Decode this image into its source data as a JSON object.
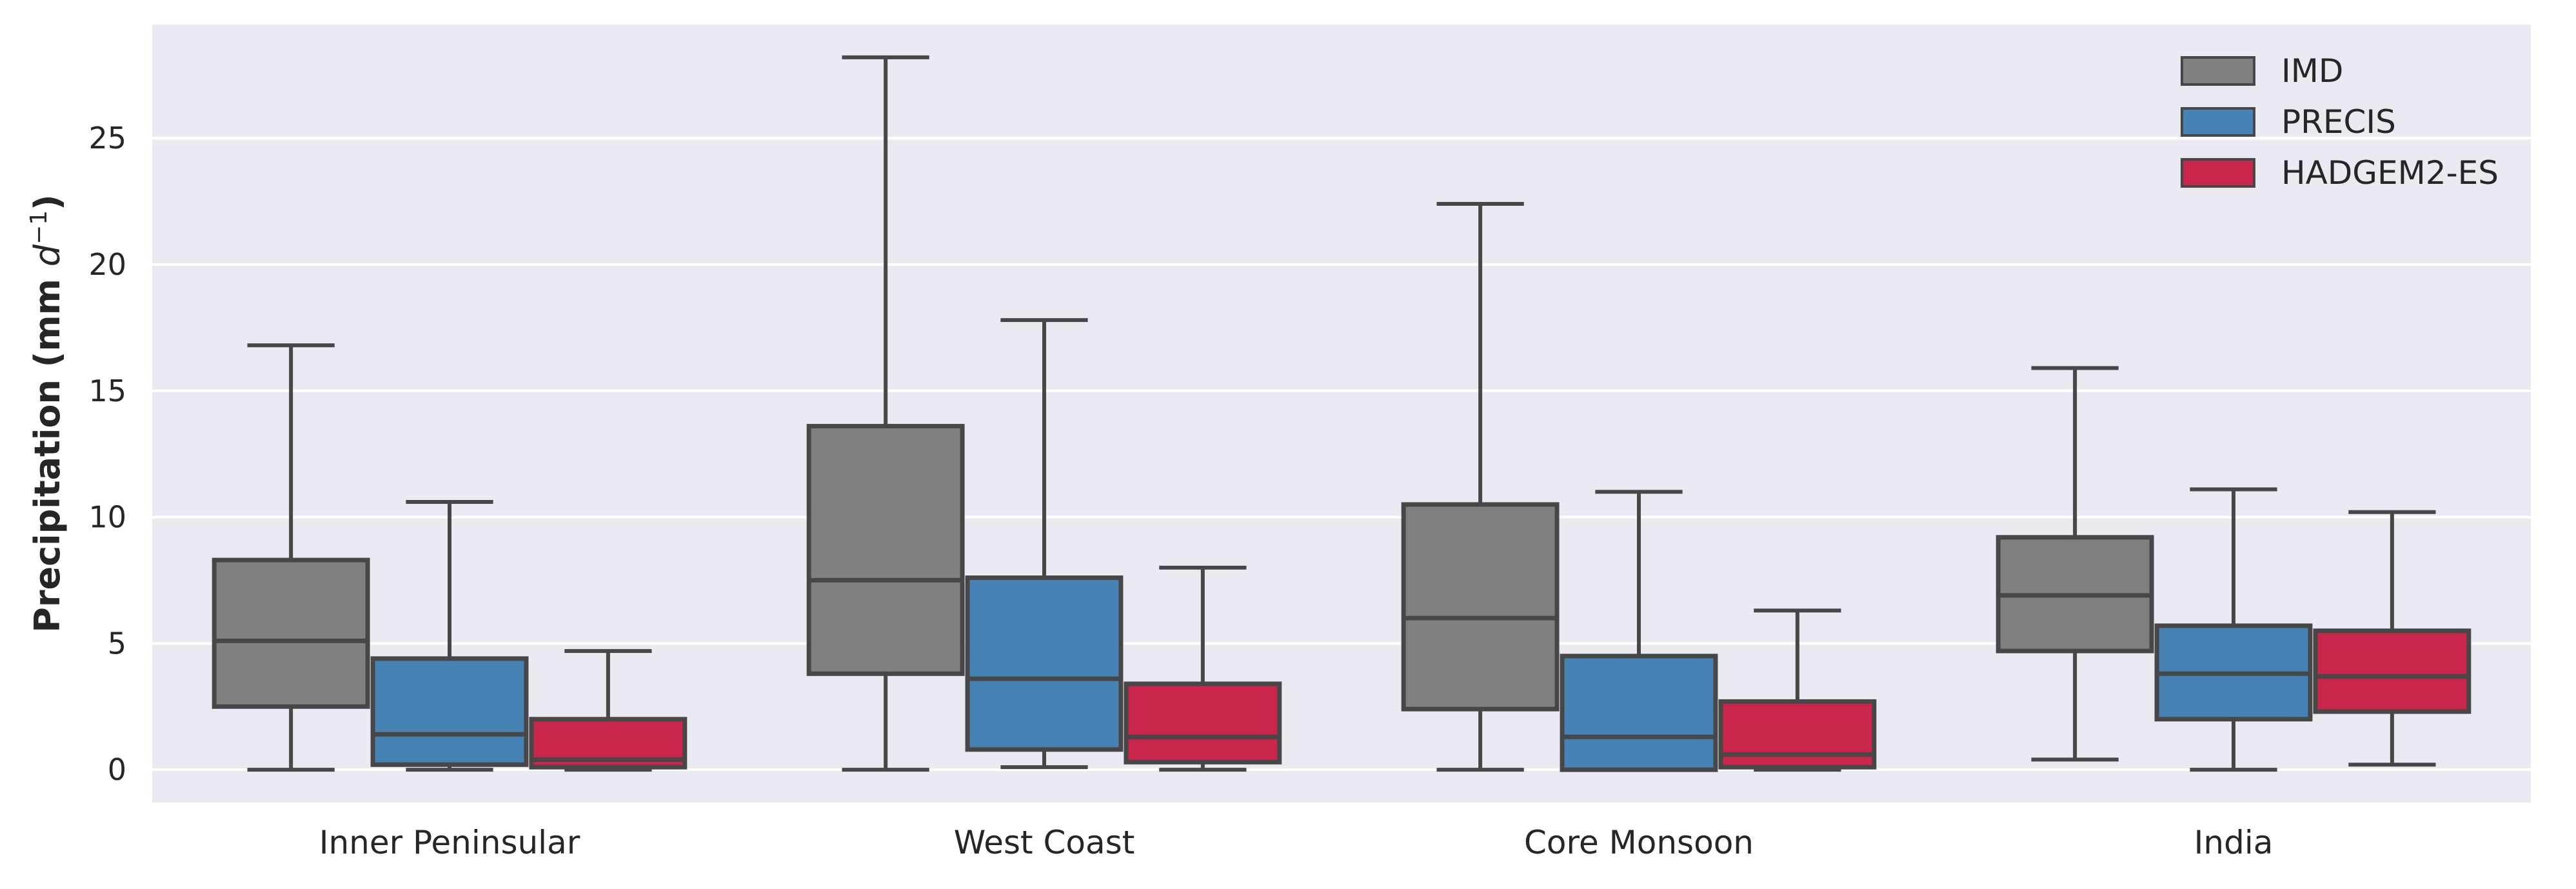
{
  "chart_data": {
    "type": "boxplot",
    "categories": [
      "Inner Peninsular",
      "West Coast",
      "Core Monsoon",
      "India"
    ],
    "ylabel_main": "Precipitation (mm ",
    "ylabel_unit_base": "d",
    "ylabel_unit_exp": "−1",
    "ylabel_close": ")",
    "xlabel": "",
    "ylim": [
      -1.3,
      29.5
    ],
    "yticks": [
      0,
      5,
      10,
      15,
      20,
      25
    ],
    "grid": true,
    "legend_position": "top-right",
    "series": [
      {
        "name": "IMD",
        "color": "#808080",
        "boxes": [
          {
            "whislo": 0.0,
            "q1": 2.5,
            "med": 5.1,
            "q3": 8.3,
            "whishi": 16.8
          },
          {
            "whislo": 0.0,
            "q1": 3.8,
            "med": 7.5,
            "q3": 13.6,
            "whishi": 28.2
          },
          {
            "whislo": 0.0,
            "q1": 2.4,
            "med": 6.0,
            "q3": 10.5,
            "whishi": 22.4
          },
          {
            "whislo": 0.4,
            "q1": 4.7,
            "med": 6.9,
            "q3": 9.2,
            "whishi": 15.9
          }
        ]
      },
      {
        "name": "PRECIS",
        "color": "#4682b4",
        "boxes": [
          {
            "whislo": 0.0,
            "q1": 0.2,
            "med": 1.4,
            "q3": 4.4,
            "whishi": 10.6
          },
          {
            "whislo": 0.1,
            "q1": 0.8,
            "med": 3.6,
            "q3": 7.6,
            "whishi": 17.8
          },
          {
            "whislo": 0.0,
            "q1": 0.0,
            "med": 1.3,
            "q3": 4.5,
            "whishi": 11.0
          },
          {
            "whislo": 0.0,
            "q1": 2.0,
            "med": 3.8,
            "q3": 5.7,
            "whishi": 11.1
          }
        ]
      },
      {
        "name": "HADGEM2-ES",
        "color": "#c8264a",
        "boxes": [
          {
            "whislo": 0.0,
            "q1": 0.1,
            "med": 0.4,
            "q3": 2.0,
            "whishi": 4.7
          },
          {
            "whislo": 0.0,
            "q1": 0.3,
            "med": 1.3,
            "q3": 3.4,
            "whishi": 8.0
          },
          {
            "whislo": 0.0,
            "q1": 0.1,
            "med": 0.6,
            "q3": 2.7,
            "whishi": 6.3
          },
          {
            "whislo": 0.2,
            "q1": 2.3,
            "med": 3.7,
            "q3": 5.5,
            "whishi": 10.2
          }
        ]
      }
    ]
  }
}
